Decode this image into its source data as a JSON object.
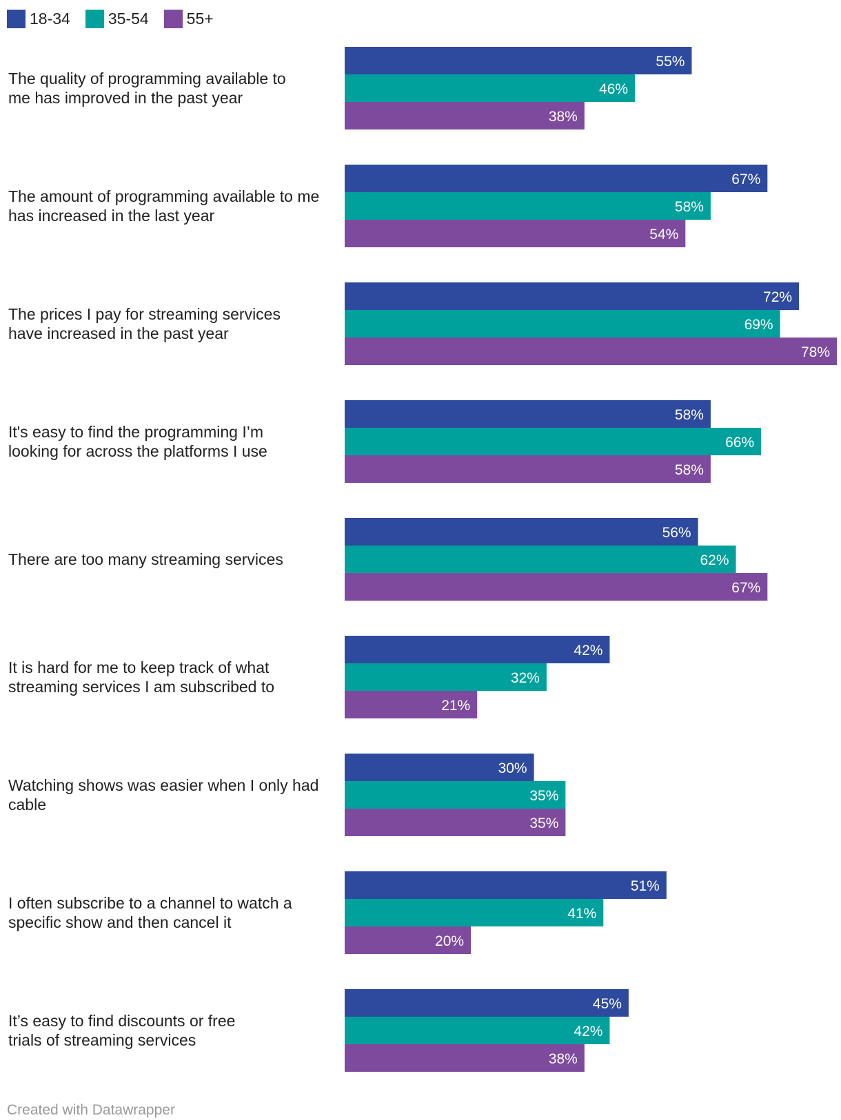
{
  "chart_data": {
    "type": "bar",
    "orientation": "horizontal",
    "title": "",
    "xlabel": "",
    "ylabel": "",
    "xlim": [
      0,
      78
    ],
    "grid": false,
    "legend": {
      "position": "top-left"
    },
    "value_suffix": "%",
    "categories": [
      "The quality of programming available to me has improved in the past year",
      "The amount of programming available to me has increased in the last year",
      "The prices I pay for streaming services have increased in the past year",
      "It's easy to find the programming I’m looking for across the platforms I use",
      "There are too many streaming services",
      "It is hard for me to keep track of what streaming services I am subscribed to",
      "Watching shows was easier when I only had cable",
      "I often subscribe to a channel to watch a specific show and then cancel it",
      "It’s easy to find discounts or free trials of streaming services"
    ],
    "series": [
      {
        "name": "18-34",
        "color": "#2e4a9e",
        "values": [
          55,
          67,
          72,
          58,
          56,
          42,
          30,
          51,
          45
        ]
      },
      {
        "name": "35-54",
        "color": "#00a19c",
        "values": [
          46,
          58,
          69,
          66,
          62,
          32,
          35,
          41,
          42
        ]
      },
      {
        "name": "55+",
        "color": "#7e4a9e",
        "values": [
          38,
          54,
          78,
          58,
          67,
          21,
          35,
          20,
          38
        ]
      }
    ]
  },
  "footer": {
    "credit": "Created with Datawrapper"
  }
}
